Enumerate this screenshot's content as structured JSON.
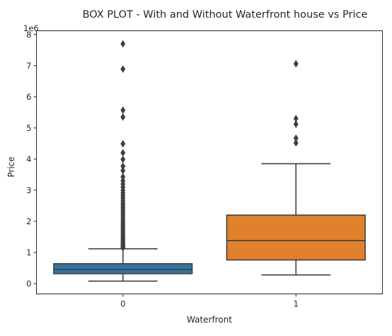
{
  "chart_data": {
    "type": "box",
    "title": "BOX PLOT - With and Without Waterfront house vs Price",
    "xlabel": "Waterfront",
    "ylabel": "Price",
    "y_offset_label": "1e6",
    "y_unit_multiplier": 1000000,
    "ylim": [
      -0.33,
      8.12
    ],
    "yticks": [
      0,
      1,
      2,
      3,
      4,
      5,
      6,
      7,
      8
    ],
    "grid": false,
    "categories": [
      "0",
      "1"
    ],
    "boxes": [
      {
        "category": "0",
        "color": "#3274a1",
        "whisker_low": 0.08,
        "q1": 0.32,
        "median": 0.45,
        "q3": 0.64,
        "whisker_high": 1.12,
        "outliers": [
          7.7,
          6.89,
          5.57,
          5.35,
          4.49,
          4.2,
          3.99,
          3.77,
          3.63,
          3.43,
          3.3,
          3.2,
          3.1,
          3.0,
          2.92,
          2.84,
          2.76,
          2.68,
          2.6,
          2.53,
          2.46,
          2.39,
          2.32,
          2.25,
          2.18,
          2.11,
          2.04,
          1.97,
          1.91,
          1.85,
          1.79,
          1.73,
          1.67,
          1.61,
          1.55,
          1.5,
          1.45,
          1.4,
          1.35,
          1.3,
          1.26,
          1.22,
          1.18,
          1.15
        ]
      },
      {
        "category": "1",
        "color": "#e1812c",
        "whisker_low": 0.28,
        "q1": 0.76,
        "median": 1.38,
        "q3": 2.2,
        "whisker_high": 3.85,
        "outliers": [
          7.06,
          5.3,
          5.12,
          4.67,
          4.52
        ]
      }
    ]
  }
}
